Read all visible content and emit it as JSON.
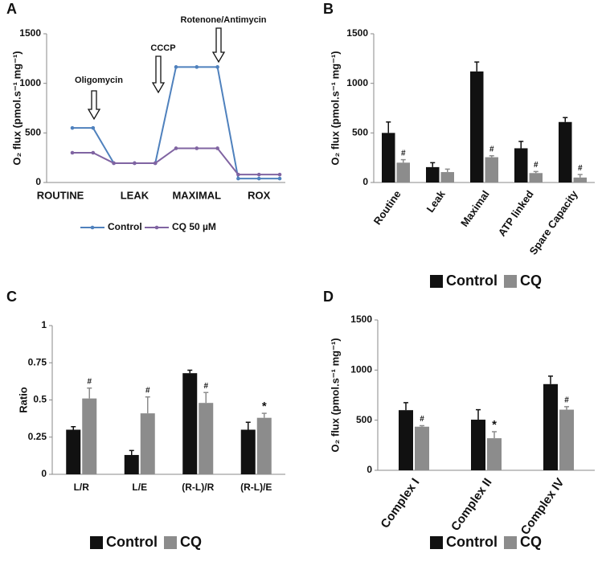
{
  "chart_data": [
    {
      "type": "line",
      "label": "A",
      "ylabel": "O₂ flux (pmol.s⁻¹ mg⁻¹)",
      "categories": [
        "ROUTINE",
        null,
        null,
        "LEAK",
        null,
        null,
        "MAXIMAL",
        null,
        null,
        "ROX",
        null
      ],
      "series": [
        {
          "name": "Control",
          "color": "#4f81bd",
          "values": [
            550,
            550,
            195,
            195,
            195,
            1165,
            1165,
            1165,
            40,
            40,
            40
          ]
        },
        {
          "name": "CQ 50 µM",
          "color": "#8064a2",
          "values": [
            300,
            300,
            195,
            195,
            195,
            345,
            345,
            345,
            80,
            80,
            80
          ]
        }
      ],
      "annotations": [
        "Oligomycin",
        "CCCP",
        "Rotenone/Antimycin"
      ],
      "ylim": [
        0,
        1500
      ],
      "yticks": [
        0,
        500,
        1000,
        1500
      ]
    },
    {
      "type": "bar",
      "label": "B",
      "ylabel": "O₂ flux (pmol.s⁻¹ mg⁻¹)",
      "categories": [
        "Routine",
        "Leak",
        "Maximal",
        "ATP linked",
        "Spare Capacity"
      ],
      "series": [
        {
          "name": "Control",
          "color": "#111111",
          "values": [
            500,
            155,
            1120,
            345,
            610
          ],
          "errors": [
            110,
            45,
            95,
            70,
            45
          ]
        },
        {
          "name": "CQ",
          "color": "#8c8c8c",
          "values": [
            200,
            105,
            255,
            95,
            50
          ],
          "errors": [
            30,
            30,
            15,
            15,
            30
          ],
          "markers": [
            "#",
            null,
            "#",
            "#",
            "#"
          ]
        }
      ],
      "ylim": [
        0,
        1500
      ],
      "yticks": [
        0,
        500,
        1000,
        1500
      ]
    },
    {
      "type": "bar",
      "label": "C",
      "ylabel": "Ratio",
      "categories": [
        "L/R",
        "L/E",
        "(R-L)/R",
        "(R-L)/E"
      ],
      "series": [
        {
          "name": "Control",
          "color": "#111111",
          "values": [
            0.3,
            0.13,
            0.68,
            0.3
          ],
          "errors": [
            0.02,
            0.03,
            0.02,
            0.05
          ]
        },
        {
          "name": "CQ",
          "color": "#8c8c8c",
          "values": [
            0.51,
            0.41,
            0.48,
            0.38
          ],
          "errors": [
            0.07,
            0.11,
            0.07,
            0.03
          ],
          "markers": [
            "#",
            "#",
            "#",
            "*"
          ]
        }
      ],
      "ylim": [
        0,
        1
      ],
      "yticks": [
        0,
        0.25,
        0.5,
        0.75,
        1
      ]
    },
    {
      "type": "bar",
      "label": "D",
      "ylabel": "O₂ flux (pmol.s⁻¹ mg⁻¹)",
      "categories": [
        "Complex I",
        "Complex II",
        "Complex IV"
      ],
      "series": [
        {
          "name": "Control",
          "color": "#111111",
          "values": [
            600,
            505,
            860
          ],
          "errors": [
            75,
            100,
            80
          ]
        },
        {
          "name": "CQ",
          "color": "#8c8c8c",
          "values": [
            435,
            320,
            605
          ],
          "errors": [
            10,
            65,
            30
          ],
          "markers": [
            "#",
            "*",
            "#"
          ]
        }
      ],
      "ylim": [
        0,
        1500
      ],
      "yticks": [
        0,
        500,
        1000,
        1500
      ]
    }
  ]
}
